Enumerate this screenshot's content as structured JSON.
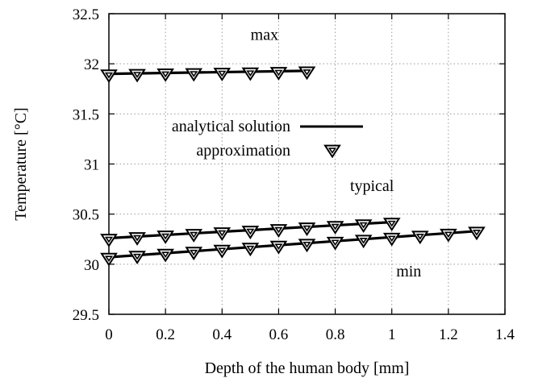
{
  "chart_data": {
    "type": "line",
    "xlabel": "Depth of the human body [mm]",
    "ylabel": "Temperature [°C]",
    "xlim": [
      0,
      1.4
    ],
    "ylim": [
      29.5,
      32.5
    ],
    "x_ticks": [
      "0",
      "0.2",
      "0.4",
      "0.6",
      "0.8",
      "1",
      "1.2",
      "1.4"
    ],
    "y_ticks": [
      "29.5",
      "30",
      "30.5",
      "31",
      "31.5",
      "32",
      "32.5"
    ],
    "grid": true,
    "legend_position": "upper-middle",
    "legend": {
      "line_label": "analytical solution",
      "marker_label": "approximation"
    },
    "series": [
      {
        "label": "max",
        "line": {
          "x": [
            0,
            0.7
          ],
          "y": [
            31.9,
            31.93
          ]
        },
        "points": {
          "x": [
            0,
            0.1,
            0.2,
            0.3,
            0.4,
            0.5,
            0.6,
            0.7
          ],
          "y": [
            31.9,
            31.905,
            31.91,
            31.913,
            31.917,
            31.92,
            31.925,
            31.93
          ]
        }
      },
      {
        "label": "typical",
        "line": {
          "x": [
            0,
            1.0
          ],
          "y": [
            30.26,
            30.42
          ]
        },
        "points": {
          "x": [
            0,
            0.1,
            0.2,
            0.3,
            0.4,
            0.5,
            0.6,
            0.7,
            0.8,
            0.9,
            1.0
          ],
          "y": [
            30.26,
            30.276,
            30.292,
            30.308,
            30.324,
            30.34,
            30.356,
            30.372,
            30.388,
            30.404,
            30.42
          ]
        }
      },
      {
        "label": "min",
        "line": {
          "x": [
            0,
            1.3
          ],
          "y": [
            30.07,
            30.33
          ]
        },
        "points": {
          "x": [
            0,
            0.1,
            0.2,
            0.3,
            0.4,
            0.5,
            0.6,
            0.7,
            0.8,
            0.9,
            1.0,
            1.1,
            1.2,
            1.3
          ],
          "y": [
            30.07,
            30.09,
            30.11,
            30.13,
            30.15,
            30.17,
            30.19,
            30.21,
            30.23,
            30.25,
            30.27,
            30.29,
            30.31,
            30.33
          ]
        }
      }
    ],
    "annotations": [
      {
        "text": "max",
        "x": 0.55,
        "y": 32.24
      },
      {
        "text": "typical",
        "x": 0.93,
        "y": 30.73
      },
      {
        "text": "min",
        "x": 1.06,
        "y": 29.88
      }
    ]
  }
}
